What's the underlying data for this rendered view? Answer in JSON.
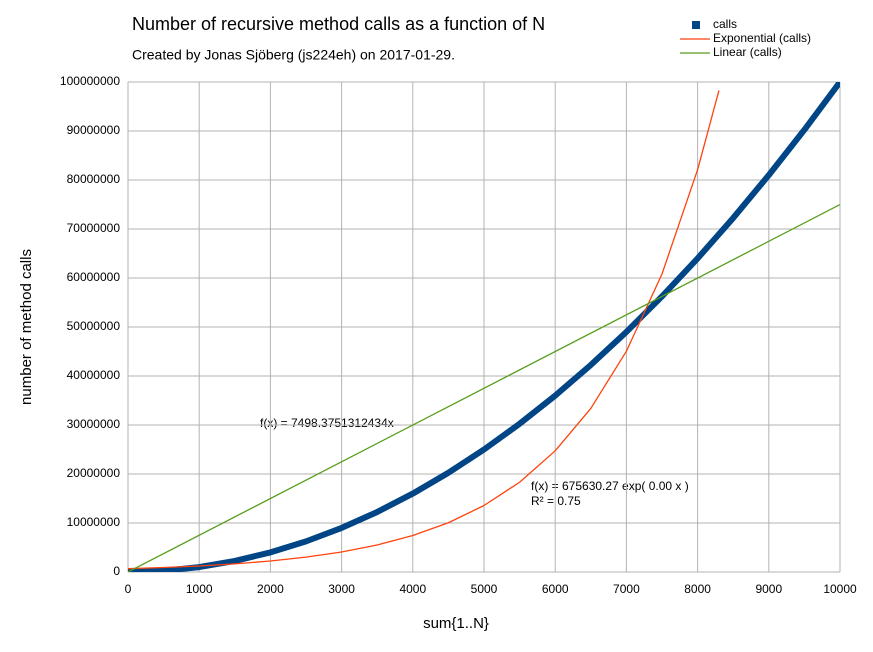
{
  "chart_data": {
    "type": "scatter",
    "title": "Number of recursive method calls as a function of N",
    "subtitle": "Created by Jonas Sjöberg (js224eh) on 2017-01-29.",
    "x_label": "sum{1..N}",
    "y_label": "number of method calls",
    "annotations": [
      "f(x) = 7498.3751312434x",
      "f(x) = 675630.27 exp( 0.00 x )",
      "R² = 0.75"
    ],
    "xlim": [
      0,
      10000
    ],
    "xticks": [
      0,
      1000,
      2000,
      3000,
      4000,
      5000,
      6000,
      7000,
      8000,
      9000,
      10000
    ],
    "ylim": [
      0,
      100000000
    ],
    "yticks": [
      0,
      10000000,
      20000000,
      30000000,
      40000000,
      50000000,
      60000000,
      70000000,
      80000000,
      90000000,
      100000000
    ],
    "grid": true,
    "legend": "top-right",
    "series": [
      {
        "name": "calls",
        "color": "#004586",
        "marker": "square",
        "x": [
          0,
          500,
          1000,
          1500,
          2000,
          2500,
          3000,
          3500,
          4000,
          4500,
          5000,
          5500,
          6000,
          6500,
          7000,
          7500,
          8000,
          8500,
          9000,
          9500,
          10000
        ],
        "values": [
          0,
          250000,
          1000000,
          2250000,
          4000000,
          6250000,
          9000000,
          12250000,
          16000000,
          20250000,
          25000000,
          30250000,
          36000000,
          42250000,
          49000000,
          56250000,
          64000000,
          72250000,
          81000000,
          90250000,
          100000000
        ]
      },
      {
        "name": "Exponential (calls)",
        "color": "#ff420e",
        "marker": "line",
        "x": [
          0,
          500,
          1000,
          1500,
          2000,
          2500,
          3000,
          3500,
          4000,
          4500,
          5000,
          5500,
          6000,
          6500,
          7000,
          7500,
          8000,
          8300
        ],
        "values": [
          675630,
          912000,
          1231000,
          1662000,
          2243000,
          3028000,
          4087000,
          5517000,
          7448000,
          10050000,
          13570000,
          18320000,
          24730000,
          33380000,
          45060000,
          60820000,
          82100000,
          98280000
        ]
      },
      {
        "name": "Linear (calls)",
        "color": "#579d1c",
        "marker": "line",
        "x": [
          0,
          10000
        ],
        "values": [
          0,
          74983751
        ]
      }
    ]
  }
}
